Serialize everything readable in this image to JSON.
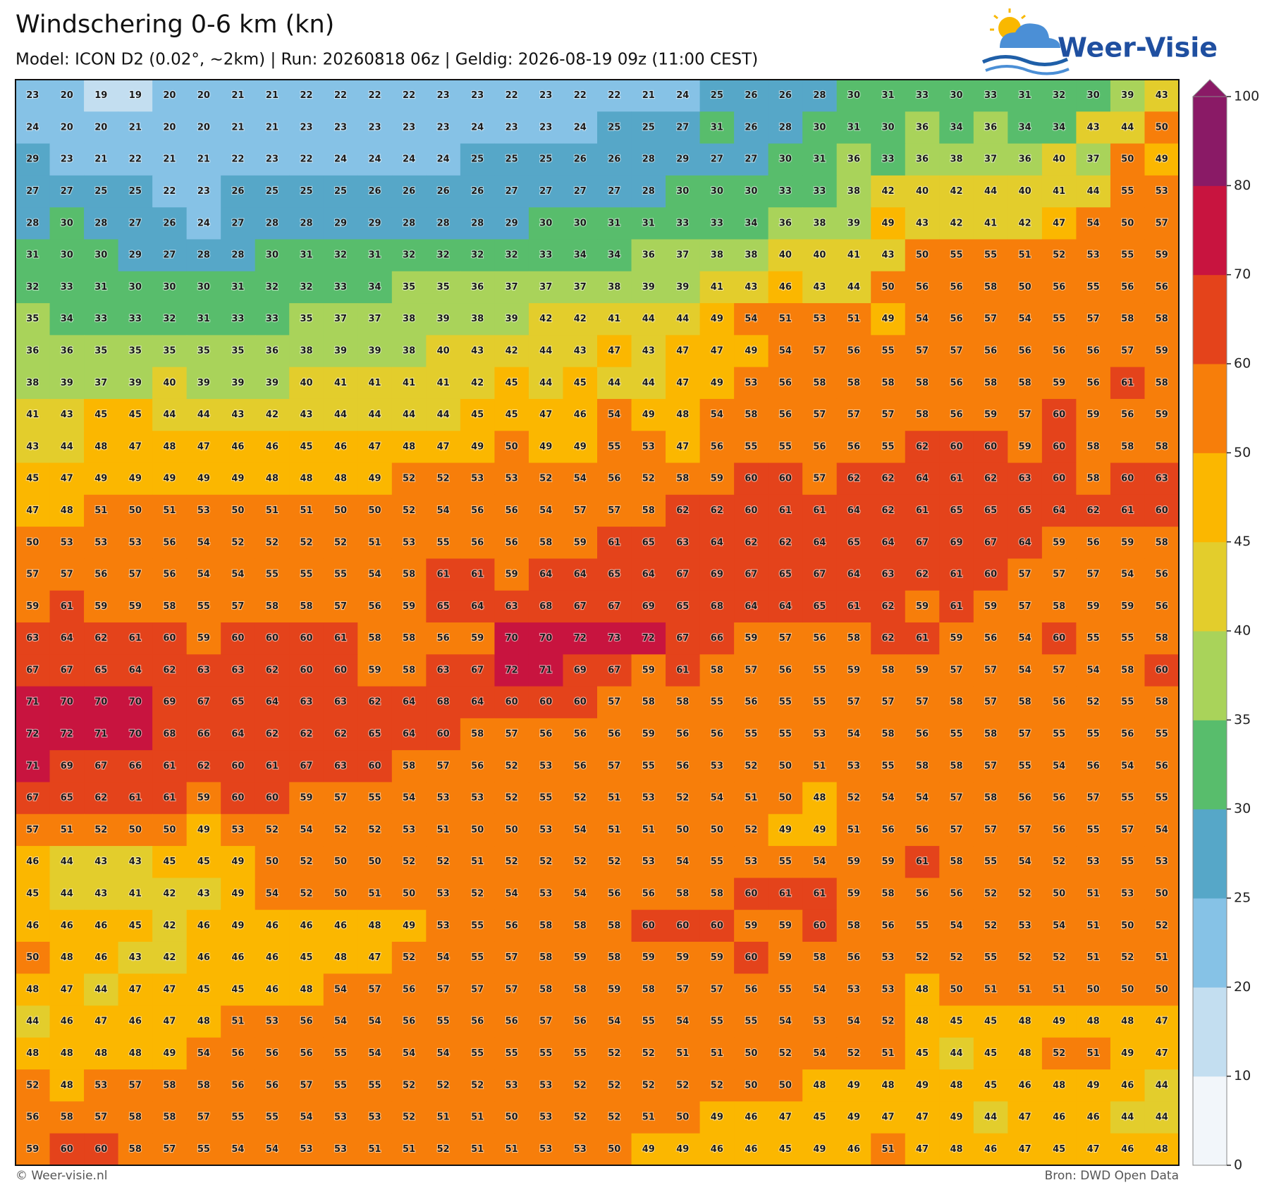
{
  "header": {
    "title": "Windschering 0-6 km (kn)",
    "subtitle": "Model: ICON D2 (0.02°, ~2km)  |  Run: 20260818 06z  |  Geldig: 2026-08-19 09z (11:00 CEST)"
  },
  "logo": "Weer-Visie",
  "map": {
    "values": [
      [
        23,
        20,
        19,
        19,
        20,
        20,
        21,
        21,
        22,
        22,
        22,
        22,
        23,
        23,
        22,
        23,
        22,
        22,
        21,
        24,
        25,
        26,
        26,
        28,
        30,
        31,
        33,
        30,
        33,
        31,
        32,
        30,
        39,
        43
      ],
      [
        24,
        20,
        20,
        21,
        20,
        20,
        21,
        21,
        23,
        23,
        23,
        23,
        23,
        24,
        23,
        23,
        24,
        25,
        25,
        27,
        31,
        26,
        28,
        30,
        31,
        30,
        36,
        34,
        36,
        34,
        34,
        43,
        44,
        50
      ],
      [
        29,
        23,
        21,
        22,
        21,
        21,
        22,
        23,
        22,
        24,
        24,
        24,
        24,
        25,
        25,
        25,
        26,
        26,
        28,
        29,
        27,
        27,
        30,
        31,
        36,
        33,
        36,
        38,
        37,
        36,
        40,
        37,
        50,
        49
      ],
      [
        27,
        27,
        25,
        25,
        22,
        23,
        26,
        25,
        25,
        25,
        26,
        26,
        26,
        26,
        27,
        27,
        27,
        27,
        28,
        30,
        30,
        30,
        33,
        33,
        38,
        42,
        40,
        42,
        44,
        40,
        41,
        44,
        55,
        53
      ],
      [
        28,
        30,
        28,
        27,
        26,
        24,
        27,
        28,
        28,
        29,
        29,
        28,
        28,
        28,
        29,
        30,
        30,
        31,
        31,
        33,
        33,
        34,
        36,
        38,
        39,
        49,
        43,
        42,
        41,
        42,
        47,
        54,
        50,
        57
      ],
      [
        31,
        30,
        30,
        29,
        27,
        28,
        28,
        30,
        31,
        32,
        31,
        32,
        32,
        32,
        32,
        33,
        34,
        34,
        36,
        37,
        38,
        38,
        40,
        40,
        41,
        43,
        50,
        55,
        55,
        51,
        52,
        53,
        55,
        59
      ],
      [
        32,
        33,
        31,
        30,
        30,
        30,
        31,
        32,
        32,
        33,
        34,
        35,
        35,
        36,
        37,
        37,
        37,
        38,
        39,
        39,
        41,
        43,
        46,
        43,
        44,
        50,
        56,
        56,
        58,
        50,
        56,
        55,
        56,
        56
      ],
      [
        35,
        34,
        33,
        33,
        32,
        31,
        33,
        33,
        35,
        37,
        37,
        38,
        39,
        38,
        39,
        42,
        42,
        41,
        44,
        44,
        49,
        54,
        51,
        53,
        51,
        49,
        54,
        56,
        57,
        54,
        55,
        57,
        58,
        58
      ],
      [
        36,
        36,
        35,
        35,
        35,
        35,
        35,
        36,
        38,
        39,
        39,
        38,
        40,
        43,
        42,
        44,
        43,
        47,
        43,
        47,
        47,
        49,
        54,
        57,
        56,
        55,
        57,
        57,
        56,
        56,
        56,
        56,
        57,
        59
      ],
      [
        38,
        39,
        37,
        39,
        40,
        39,
        39,
        39,
        40,
        41,
        41,
        41,
        41,
        42,
        45,
        44,
        45,
        44,
        44,
        47,
        49,
        53,
        56,
        58,
        58,
        58,
        58,
        56,
        58,
        58,
        59,
        56,
        61,
        58
      ],
      [
        41,
        43,
        45,
        45,
        44,
        44,
        43,
        42,
        43,
        44,
        44,
        44,
        44,
        45,
        45,
        47,
        46,
        54,
        49,
        48,
        54,
        58,
        56,
        57,
        57,
        57,
        58,
        56,
        59,
        57,
        60,
        59,
        56,
        59
      ],
      [
        43,
        44,
        48,
        47,
        48,
        47,
        46,
        46,
        45,
        46,
        47,
        48,
        47,
        49,
        50,
        49,
        49,
        55,
        53,
        47,
        56,
        55,
        55,
        56,
        56,
        55,
        62,
        60,
        60,
        59,
        60,
        58,
        58,
        58
      ],
      [
        45,
        47,
        49,
        49,
        49,
        49,
        49,
        48,
        48,
        48,
        49,
        52,
        52,
        53,
        53,
        52,
        54,
        56,
        52,
        58,
        59,
        60,
        60,
        57,
        62,
        62,
        64,
        61,
        62,
        63,
        60,
        58,
        60,
        63
      ],
      [
        47,
        48,
        51,
        50,
        51,
        53,
        50,
        51,
        51,
        50,
        50,
        52,
        54,
        56,
        56,
        54,
        57,
        57,
        58,
        62,
        62,
        60,
        61,
        61,
        64,
        62,
        61,
        65,
        65,
        65,
        64,
        62,
        61,
        60
      ],
      [
        50,
        53,
        53,
        53,
        56,
        54,
        52,
        52,
        52,
        52,
        51,
        53,
        55,
        56,
        56,
        58,
        59,
        61,
        65,
        63,
        64,
        62,
        62,
        64,
        65,
        64,
        67,
        69,
        67,
        64,
        59,
        56,
        59,
        58
      ],
      [
        57,
        57,
        56,
        57,
        56,
        54,
        54,
        55,
        55,
        55,
        54,
        58,
        61,
        61,
        59,
        64,
        64,
        65,
        64,
        67,
        69,
        67,
        65,
        67,
        64,
        63,
        62,
        61,
        60,
        57,
        57,
        57,
        54,
        56
      ],
      [
        59,
        61,
        59,
        59,
        58,
        55,
        57,
        58,
        58,
        57,
        56,
        59,
        65,
        64,
        63,
        68,
        67,
        67,
        69,
        65,
        68,
        64,
        64,
        65,
        61,
        62,
        59,
        61,
        59,
        57,
        58,
        59,
        59,
        56
      ],
      [
        63,
        64,
        62,
        61,
        60,
        59,
        60,
        60,
        60,
        61,
        58,
        58,
        56,
        59,
        70,
        70,
        72,
        73,
        72,
        67,
        66,
        59,
        57,
        56,
        58,
        62,
        61,
        59,
        56,
        54,
        60,
        55,
        55,
        58
      ],
      [
        67,
        67,
        65,
        64,
        62,
        63,
        63,
        62,
        60,
        60,
        59,
        58,
        63,
        67,
        72,
        71,
        69,
        67,
        59,
        61,
        58,
        57,
        56,
        55,
        59,
        58,
        59,
        57,
        57,
        54,
        57,
        54,
        58,
        60
      ],
      [
        71,
        70,
        70,
        70,
        69,
        67,
        65,
        64,
        63,
        63,
        62,
        64,
        68,
        64,
        60,
        60,
        60,
        57,
        58,
        58,
        55,
        56,
        55,
        55,
        57,
        57,
        57,
        58,
        57,
        58,
        56,
        52,
        55,
        58
      ],
      [
        72,
        72,
        71,
        70,
        68,
        66,
        64,
        62,
        62,
        62,
        65,
        64,
        60,
        58,
        57,
        56,
        56,
        56,
        59,
        56,
        56,
        55,
        55,
        53,
        54,
        58,
        56,
        55,
        58,
        57,
        55,
        55,
        56,
        55
      ],
      [
        71,
        69,
        67,
        66,
        61,
        62,
        60,
        61,
        67,
        63,
        60,
        58,
        57,
        56,
        52,
        53,
        56,
        57,
        55,
        56,
        53,
        52,
        50,
        51,
        53,
        55,
        58,
        58,
        57,
        55,
        54,
        56,
        54,
        56
      ],
      [
        67,
        65,
        62,
        61,
        61,
        59,
        60,
        60,
        59,
        57,
        55,
        54,
        53,
        53,
        52,
        55,
        52,
        51,
        53,
        52,
        54,
        51,
        50,
        48,
        52,
        54,
        54,
        57,
        58,
        56,
        56,
        57,
        55,
        55
      ],
      [
        57,
        51,
        52,
        50,
        50,
        49,
        53,
        52,
        54,
        52,
        52,
        53,
        51,
        50,
        50,
        53,
        54,
        51,
        51,
        50,
        50,
        52,
        49,
        49,
        51,
        56,
        56,
        57,
        57,
        57,
        56,
        55,
        57,
        54
      ],
      [
        46,
        44,
        43,
        43,
        45,
        45,
        49,
        50,
        52,
        50,
        50,
        52,
        52,
        51,
        52,
        52,
        52,
        52,
        53,
        54,
        55,
        53,
        55,
        54,
        59,
        59,
        61,
        58,
        55,
        54,
        52,
        53,
        55,
        53
      ],
      [
        45,
        44,
        43,
        41,
        42,
        43,
        49,
        54,
        52,
        50,
        51,
        50,
        53,
        52,
        54,
        53,
        54,
        56,
        56,
        58,
        58,
        60,
        61,
        61,
        59,
        58,
        56,
        56,
        52,
        52,
        50,
        51,
        53,
        50
      ],
      [
        46,
        46,
        46,
        45,
        42,
        46,
        49,
        46,
        46,
        46,
        48,
        49,
        53,
        55,
        56,
        58,
        58,
        58,
        60,
        60,
        60,
        59,
        59,
        60,
        58,
        56,
        55,
        54,
        52,
        53,
        54,
        51,
        50,
        52
      ],
      [
        50,
        48,
        46,
        43,
        42,
        46,
        46,
        46,
        45,
        48,
        47,
        52,
        54,
        55,
        57,
        58,
        59,
        58,
        59,
        59,
        59,
        60,
        59,
        58,
        56,
        53,
        52,
        52,
        55,
        52,
        52,
        51,
        52,
        51
      ],
      [
        48,
        47,
        44,
        47,
        47,
        45,
        45,
        46,
        48,
        54,
        57,
        56,
        57,
        57,
        57,
        58,
        58,
        59,
        58,
        57,
        57,
        56,
        55,
        54,
        53,
        53,
        48,
        50,
        51,
        51,
        51,
        50,
        50,
        50
      ],
      [
        44,
        46,
        47,
        46,
        47,
        48,
        51,
        53,
        56,
        54,
        54,
        56,
        55,
        56,
        56,
        57,
        56,
        54,
        55,
        54,
        55,
        55,
        54,
        53,
        54,
        52,
        48,
        45,
        45,
        48,
        49,
        48,
        48,
        47
      ],
      [
        48,
        48,
        48,
        48,
        49,
        54,
        56,
        56,
        56,
        55,
        54,
        54,
        54,
        55,
        55,
        55,
        55,
        52,
        52,
        51,
        51,
        50,
        52,
        54,
        52,
        51,
        45,
        44,
        45,
        48,
        52,
        51,
        49,
        47
      ],
      [
        52,
        48,
        53,
        57,
        58,
        58,
        56,
        56,
        57,
        55,
        55,
        52,
        52,
        52,
        53,
        53,
        52,
        52,
        52,
        52,
        52,
        50,
        50,
        48,
        49,
        48,
        49,
        48,
        45,
        46,
        48,
        49,
        46,
        44
      ],
      [
        56,
        58,
        57,
        58,
        58,
        57,
        55,
        55,
        54,
        53,
        53,
        52,
        51,
        51,
        50,
        53,
        52,
        52,
        51,
        50,
        49,
        46,
        47,
        45,
        49,
        47,
        47,
        49,
        44,
        47,
        46,
        46,
        44,
        44
      ],
      [
        59,
        60,
        60,
        58,
        57,
        55,
        54,
        54,
        53,
        53,
        51,
        51,
        52,
        51,
        51,
        53,
        53,
        50,
        49,
        49,
        46,
        46,
        45,
        49,
        46,
        51,
        47,
        48,
        46,
        47,
        45,
        47,
        46,
        48
      ]
    ],
    "colorbar": {
      "ticks": [
        0,
        10,
        20,
        25,
        30,
        35,
        40,
        45,
        50,
        60,
        70,
        80,
        100
      ],
      "colors": [
        "#f2f6fa",
        "#c3def0",
        "#86c2e6",
        "#56a7c8",
        "#58bd6c",
        "#a9d35a",
        "#e3cd2c",
        "#fbb700",
        "#f77e0a",
        "#e4431b",
        "#c8143f",
        "#8a1a66"
      ]
    }
  },
  "footer": {
    "copyright": "© Weer-visie.nl",
    "source": "Bron: DWD Open Data"
  }
}
